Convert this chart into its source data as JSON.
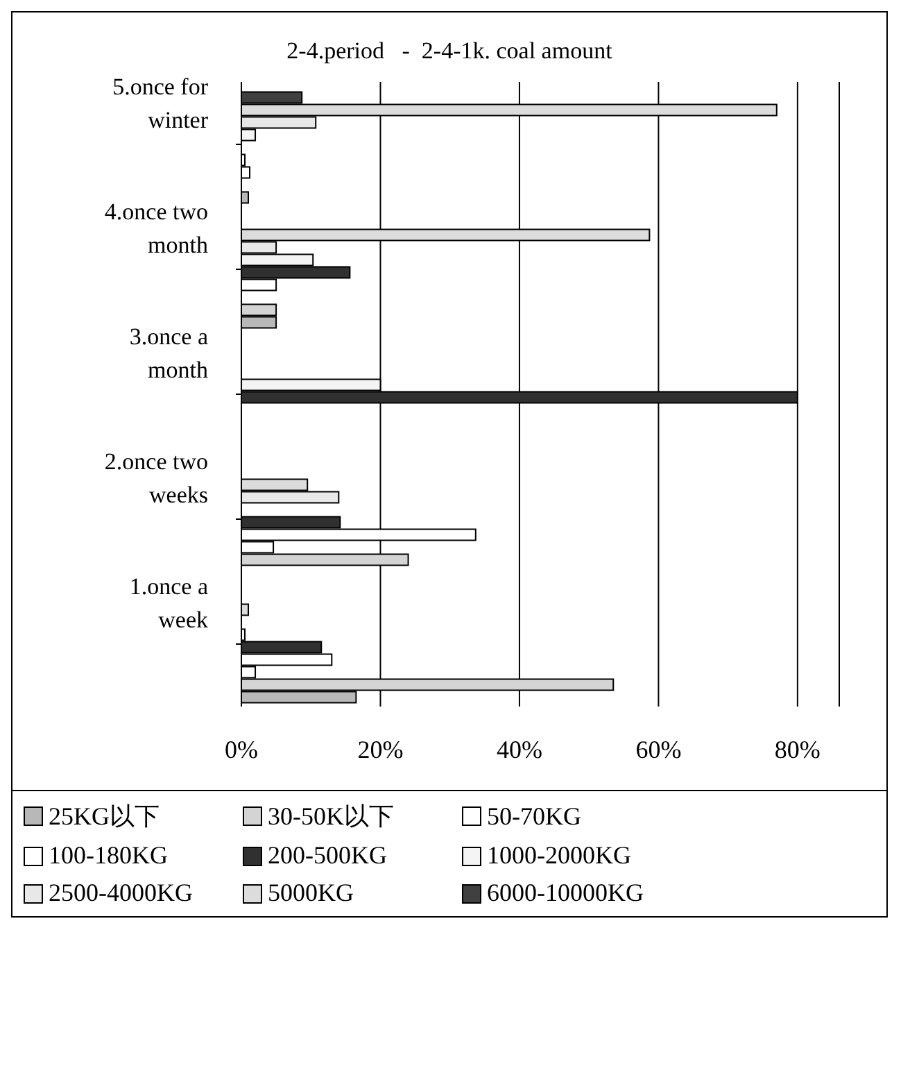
{
  "chart_data": {
    "type": "bar",
    "orientation": "horizontal",
    "title": "2-4.period   -  2-4-1k. coal amount",
    "categories": [
      "5.once for winter",
      "4.once two month",
      "3.once a month",
      "2.once two weeks",
      "1.once a week"
    ],
    "series": [
      {
        "name": "25KG以下",
        "color": "#b8b8b8",
        "values": [
          1,
          5,
          0,
          0,
          16.5
        ]
      },
      {
        "name": "30-50K以下",
        "color": "#d4d4d4",
        "values": [
          0,
          5,
          0,
          24,
          53.5
        ]
      },
      {
        "name": "50-70KG",
        "color": "#ffffff",
        "values": [
          1.2,
          0,
          0,
          4.6,
          2
        ]
      },
      {
        "name": "100-180KG",
        "color": "#ffffff",
        "values": [
          0.5,
          5,
          0,
          33.7,
          13
        ]
      },
      {
        "name": "200-500KG",
        "color": "#303030",
        "values": [
          0,
          15.6,
          80,
          14.2,
          11.5
        ]
      },
      {
        "name": "1000-2000KG",
        "color": "#f4f4f4",
        "values": [
          2,
          10.3,
          20,
          0,
          0.5
        ]
      },
      {
        "name": "2500-4000KG",
        "color": "#e8e8e8",
        "values": [
          10.7,
          5,
          0,
          14,
          0
        ]
      },
      {
        "name": "5000KG",
        "color": "#dcdcdc",
        "values": [
          77,
          58.7,
          0,
          9.5,
          1
        ]
      },
      {
        "name": "6000-10000KG",
        "color": "#404040",
        "values": [
          8.7,
          0,
          0,
          0,
          0
        ]
      }
    ],
    "xlim": [
      0,
      86
    ],
    "xticks": [
      {
        "value": 0,
        "label": "0%"
      },
      {
        "value": 20,
        "label": "20%"
      },
      {
        "value": 40,
        "label": "40%"
      },
      {
        "value": 60,
        "label": "60%"
      },
      {
        "value": 80,
        "label": "80%"
      }
    ],
    "grid": "x",
    "legend": "bottom"
  }
}
